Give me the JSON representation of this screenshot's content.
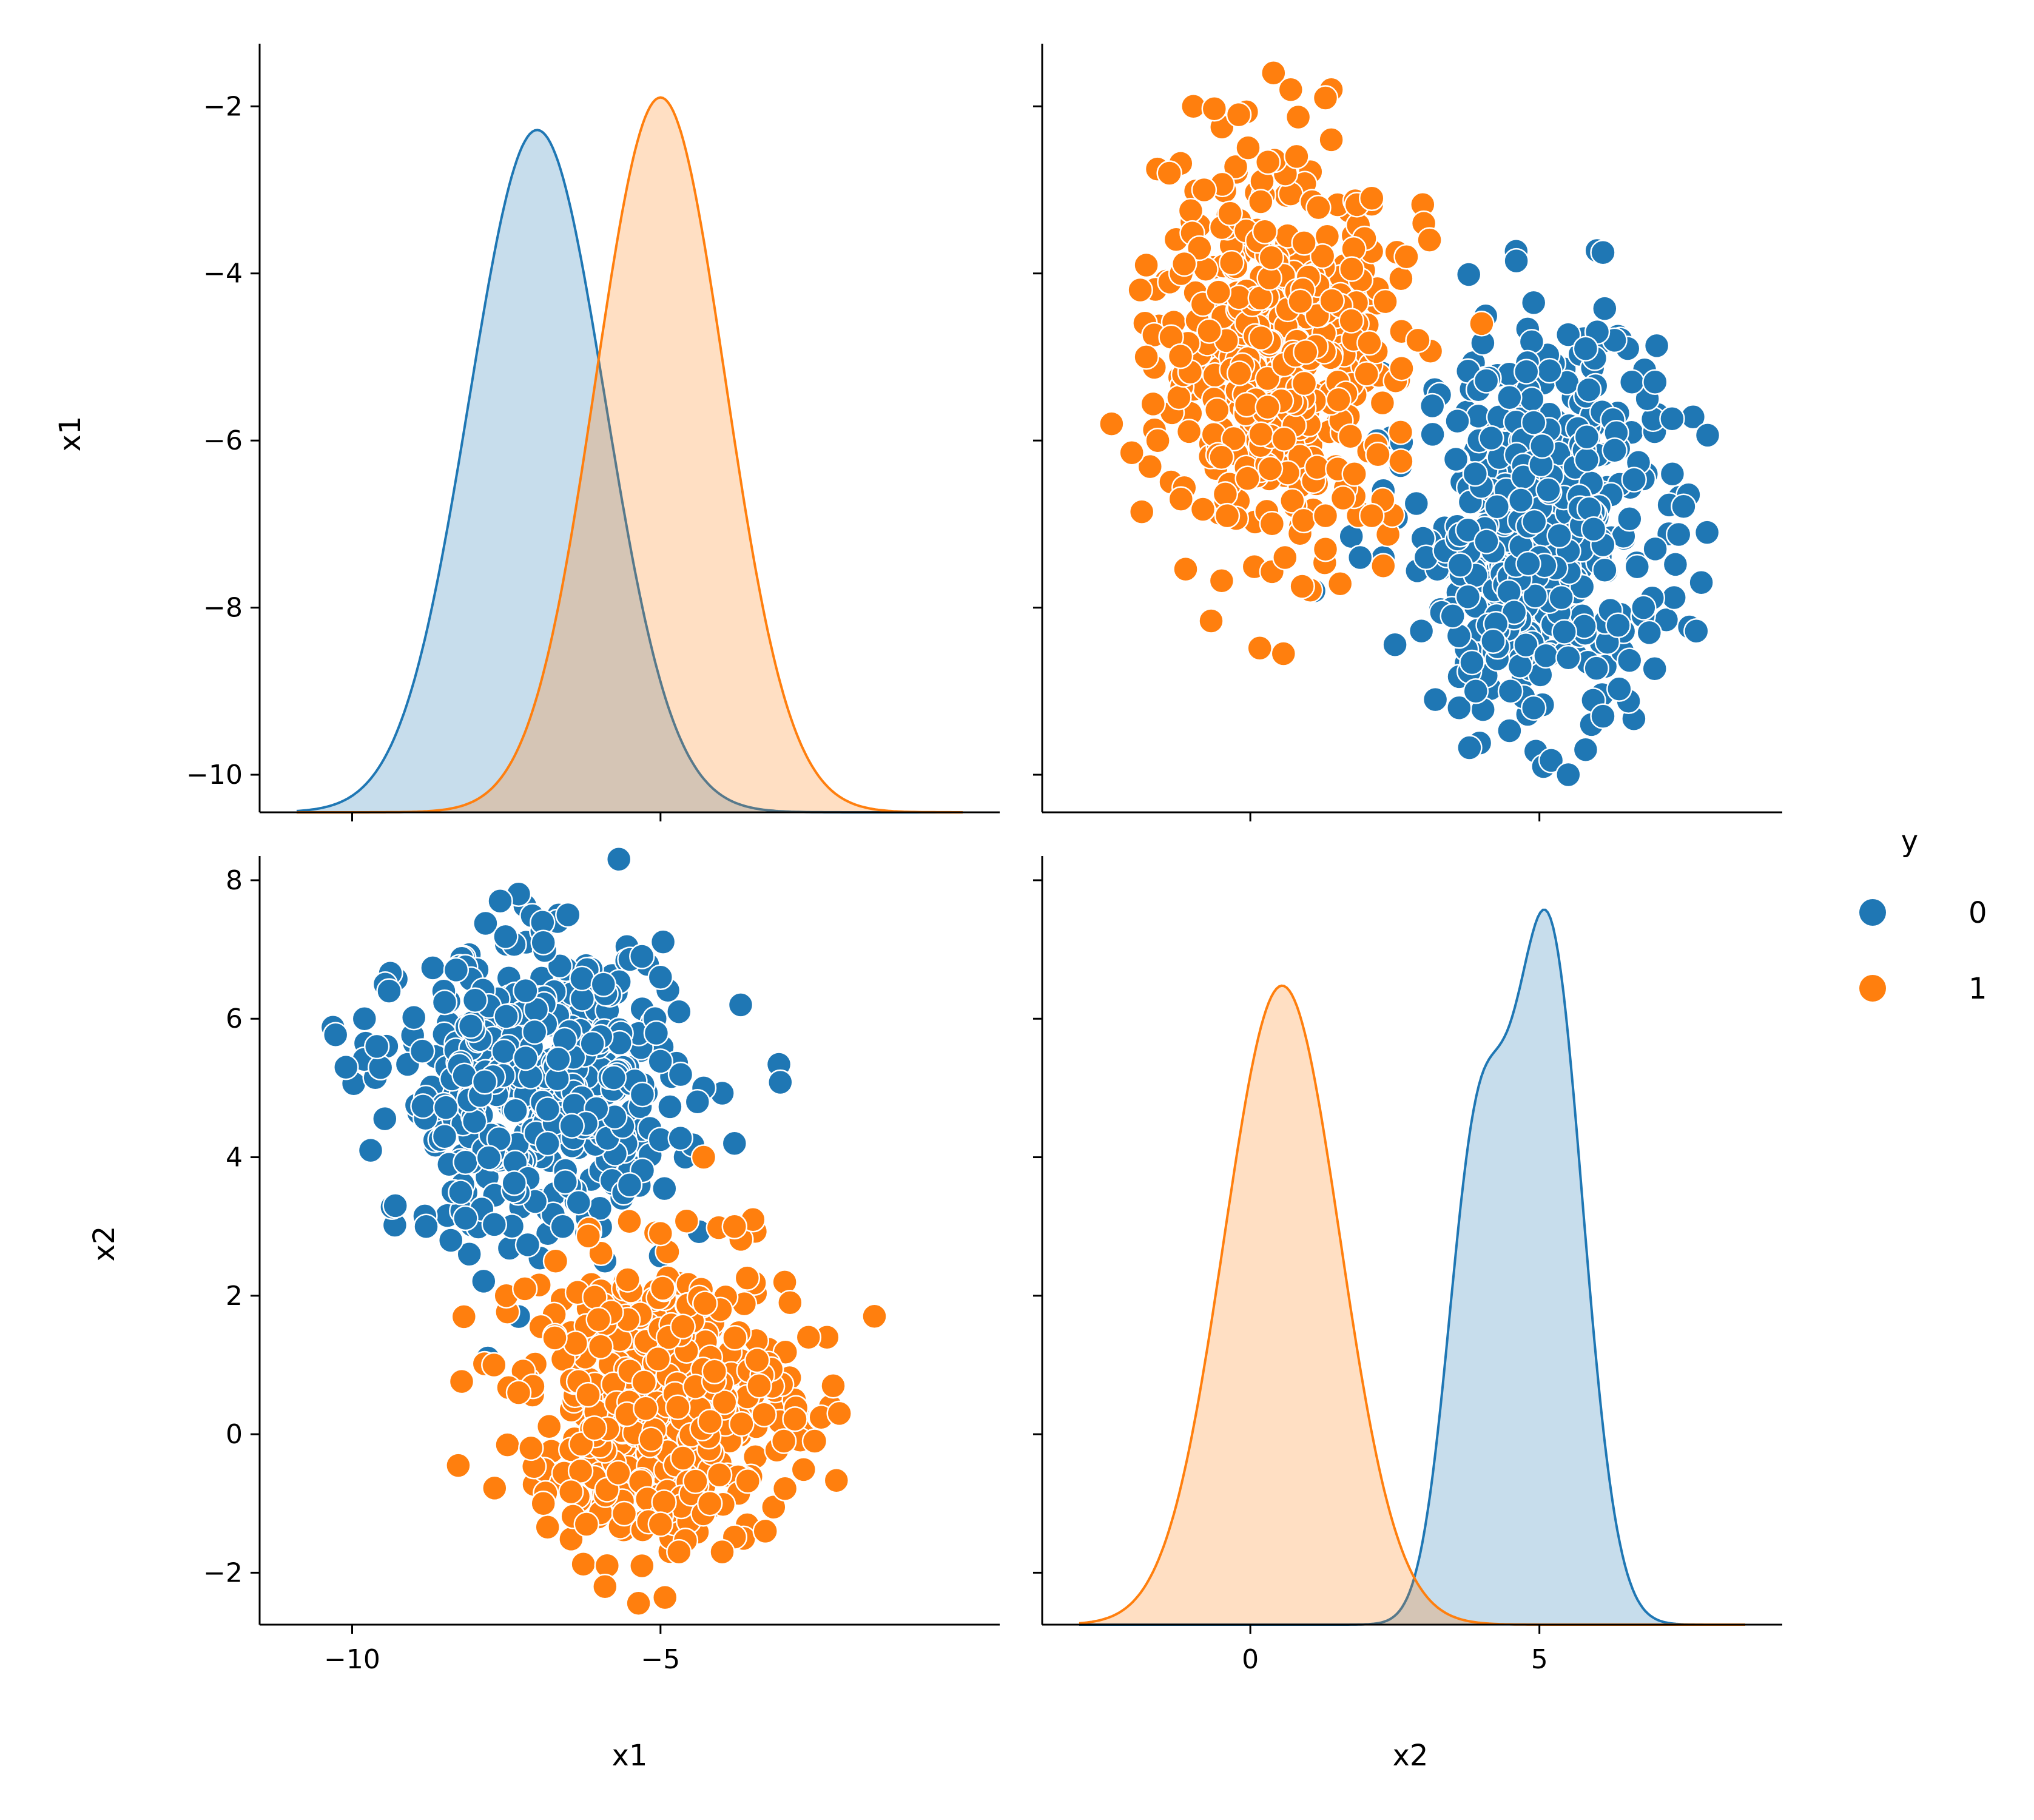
{
  "colors": {
    "class0": "#1f77b4",
    "class1": "#ff7f0e"
  },
  "legend": {
    "title": "y",
    "placement": "right",
    "entries": [
      {
        "label": "0"
      },
      {
        "label": "1"
      }
    ]
  },
  "chart_data": [
    {
      "type": "kde",
      "panel": "x1-vs-x1",
      "xlabel": "",
      "ylabel": "x1",
      "xlim": [
        -11.5,
        0.5
      ],
      "ylim": [
        -10.45,
        -1.25
      ],
      "xticks": [
        -10,
        -5
      ],
      "yticks": [
        -10,
        -8,
        -6,
        -4,
        -2
      ],
      "series": [
        {
          "name": "0",
          "components": [
            {
              "mean": -7.0,
              "sd": 1.1,
              "weight": 1.0
            }
          ]
        },
        {
          "name": "1",
          "components": [
            {
              "mean": -5.0,
              "sd": 1.05,
              "weight": 1.0
            }
          ]
        }
      ]
    },
    {
      "type": "scatter",
      "panel": "x1-vs-x2",
      "xlabel": "",
      "ylabel": "",
      "xlim": [
        -3.6,
        9.2
      ],
      "ylim": [
        -10.45,
        -1.25
      ],
      "xticks": [
        0,
        5
      ],
      "yticks": [
        -10,
        -8,
        -6,
        -4,
        -2
      ],
      "series": [
        {
          "name": "0",
          "cluster": {
            "x_mean": 5.0,
            "x_sd": 1.0,
            "y_mean": -7.0,
            "y_sd": 1.1,
            "n": 500
          },
          "points": [
            [
              6.1,
              -3.75
            ],
            [
              4.6,
              -3.85
            ],
            [
              4.9,
              -4.35
            ],
            [
              5.5,
              -10.0
            ],
            [
              5.9,
              -9.4
            ],
            [
              4.9,
              -9.2
            ],
            [
              3.9,
              -9.0
            ],
            [
              3.2,
              -9.1
            ],
            [
              6.1,
              -9.3
            ],
            [
              5.8,
              -9.7
            ],
            [
              7.9,
              -7.1
            ],
            [
              7.8,
              -7.7
            ],
            [
              6.3,
              -4.8
            ],
            [
              6.0,
              -4.7
            ],
            [
              5.8,
              -4.9
            ],
            [
              7.3,
              -6.4
            ],
            [
              2.2,
              -6.0
            ],
            [
              2.6,
              -6.3
            ],
            [
              2.3,
              -7.4
            ],
            [
              1.9,
              -7.4
            ],
            [
              1.1,
              -7.8
            ],
            [
              2.3,
              -6.6
            ],
            [
              6.6,
              -5.3
            ],
            [
              7.0,
              -5.3
            ],
            [
              6.8,
              -8.0
            ],
            [
              6.9,
              -8.3
            ],
            [
              4.2,
              -8.4
            ],
            [
              3.5,
              -8.1
            ],
            [
              5.5,
              -8.6
            ],
            [
              4.5,
              -9.0
            ]
          ]
        },
        {
          "name": "1",
          "cluster": {
            "x_mean": 0.5,
            "x_sd": 1.0,
            "y_mean": -5.0,
            "y_sd": 1.05,
            "n": 500
          },
          "points": [
            [
              -0.2,
              -2.1
            ],
            [
              0.4,
              -1.6
            ],
            [
              0.7,
              -1.8
            ],
            [
              1.4,
              -1.8
            ],
            [
              1.3,
              -1.9
            ],
            [
              0.8,
              -2.6
            ],
            [
              1.4,
              -2.4
            ],
            [
              -1.4,
              -2.8
            ],
            [
              -0.8,
              -3.0
            ],
            [
              2.1,
              -3.1
            ],
            [
              3.0,
              -3.4
            ],
            [
              3.1,
              -3.6
            ],
            [
              2.7,
              -3.8
            ],
            [
              -1.8,
              -3.9
            ],
            [
              -2.4,
              -5.8
            ],
            [
              -1.8,
              -5.0
            ],
            [
              -1.2,
              -6.7
            ],
            [
              -0.4,
              -6.9
            ],
            [
              0.6,
              -7.4
            ],
            [
              1.3,
              -7.3
            ],
            [
              1.3,
              -6.9
            ],
            [
              2.3,
              -7.5
            ],
            [
              2.1,
              -6.9
            ],
            [
              4.0,
              -4.6
            ],
            [
              2.9,
              -4.8
            ],
            [
              -1.6,
              -6.0
            ],
            [
              -0.5,
              -6.2
            ],
            [
              1.8,
              -6.4
            ],
            [
              0.3,
              -5.6
            ],
            [
              2.6,
              -5.9
            ]
          ]
        }
      ]
    },
    {
      "type": "scatter",
      "panel": "x2-vs-x1",
      "xlabel": "x1",
      "ylabel": "x2",
      "xlim": [
        -11.5,
        0.5
      ],
      "ylim": [
        -2.75,
        8.35
      ],
      "xticks": [
        -10,
        -5
      ],
      "yticks": [
        -2,
        0,
        2,
        4,
        6,
        8
      ],
      "series": [
        {
          "name": "0",
          "cluster": {
            "x_mean": -7.0,
            "x_sd": 1.1,
            "y_mean": 5.0,
            "y_sd": 1.0,
            "n": 500
          },
          "points": [
            [
              -7.3,
              7.8
            ],
            [
              -7.6,
              7.7
            ],
            [
              -10.1,
              5.3
            ],
            [
              -9.8,
              6.0
            ],
            [
              -9.4,
              6.4
            ],
            [
              -9.7,
              4.1
            ],
            [
              -9.3,
              3.3
            ],
            [
              -8.1,
              2.6
            ],
            [
              -7.8,
              1.1
            ],
            [
              -7.3,
              1.7
            ],
            [
              -6.2,
              2.9
            ],
            [
              -5.9,
              2.5
            ],
            [
              -3.7,
              6.2
            ],
            [
              -3.8,
              4.2
            ],
            [
              -4.3,
              5.0
            ],
            [
              -4.4,
              4.8
            ],
            [
              -6.5,
              7.5
            ],
            [
              -5.3,
              6.9
            ],
            [
              -5.0,
              6.6
            ],
            [
              -4.7,
              6.1
            ],
            [
              -8.8,
              3.0
            ],
            [
              -8.4,
              2.8
            ],
            [
              -9.6,
              5.6
            ],
            [
              -6.9,
              7.1
            ],
            [
              -8.5,
              4.3
            ],
            [
              -5.5,
              3.6
            ]
          ]
        },
        {
          "name": "1",
          "cluster": {
            "x_mean": -5.0,
            "x_sd": 1.05,
            "y_mean": 0.5,
            "y_sd": 1.0,
            "n": 500
          },
          "points": [
            [
              -5.9,
              -2.2
            ],
            [
              -5.3,
              -1.9
            ],
            [
              -4.7,
              -1.7
            ],
            [
              -4.0,
              -1.7
            ],
            [
              -6.9,
              -1.0
            ],
            [
              -7.1,
              -0.2
            ],
            [
              -7.3,
              0.6
            ],
            [
              -7.7,
              1.0
            ],
            [
              -7.5,
              2.0
            ],
            [
              -7.2,
              2.1
            ],
            [
              -3.3,
              -1.4
            ],
            [
              -2.1,
              0.3
            ],
            [
              -2.2,
              0.7
            ],
            [
              -2.3,
              1.4
            ],
            [
              -2.6,
              1.4
            ],
            [
              -2.9,
              1.9
            ],
            [
              -3.5,
              3.1
            ],
            [
              -3.8,
              3.0
            ],
            [
              -4.3,
              4.0
            ],
            [
              -5.0,
              2.9
            ],
            [
              -2.5,
              -0.1
            ],
            [
              -3.0,
              -0.1
            ],
            [
              -4.2,
              -1.0
            ],
            [
              -5.0,
              -1.3
            ],
            [
              -6.2,
              -1.3
            ],
            [
              -3.4,
              0.7
            ],
            [
              -6.7,
              2.5
            ]
          ]
        }
      ]
    },
    {
      "type": "kde",
      "panel": "x2-vs-x2",
      "xlabel": "x2",
      "ylabel": "",
      "xlim": [
        -3.6,
        9.2
      ],
      "ylim": [
        -2.75,
        8.35
      ],
      "xticks": [
        0,
        5
      ],
      "yticks": [
        -2,
        0,
        2,
        4,
        6,
        8
      ],
      "series": [
        {
          "name": "0",
          "components": [
            {
              "mean": 3.9,
              "sd": 0.5,
              "weight": 0.35
            },
            {
              "mean": 5.15,
              "sd": 0.6,
              "weight": 0.65
            }
          ]
        },
        {
          "name": "1",
          "components": [
            {
              "mean": 0.55,
              "sd": 1.0,
              "weight": 1.0
            }
          ]
        }
      ]
    }
  ]
}
